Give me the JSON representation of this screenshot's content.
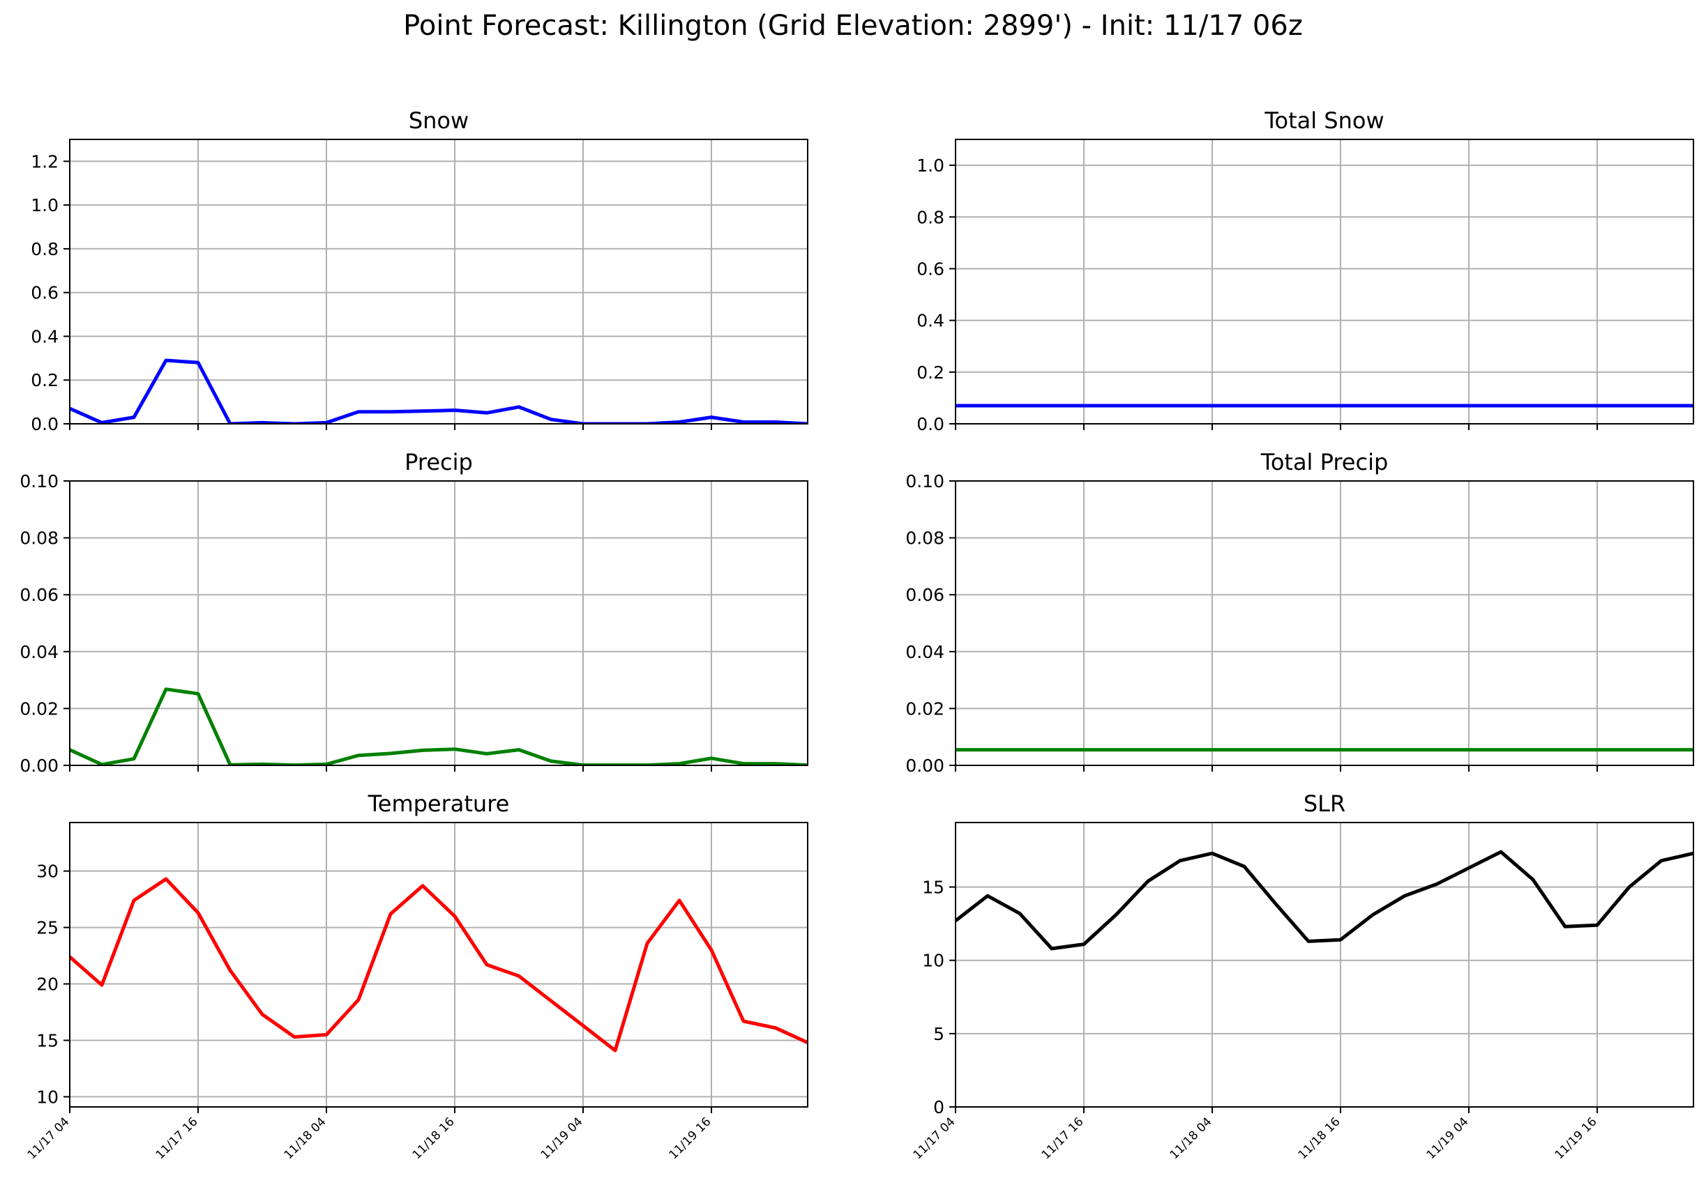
{
  "title": "Point Forecast: Killington (Grid Elevation: 2899') - Init: 11/17 06z",
  "x_tick_labels": [
    "11/17 04",
    "11/17 16",
    "11/18 04",
    "11/18 16",
    "11/19 04",
    "11/19 16"
  ],
  "chart_data": [
    {
      "type": "line",
      "title": "Snow",
      "color": "#0000ff",
      "ylim": [
        0,
        1.3
      ],
      "y_ticks": [
        0.0,
        0.2,
        0.4,
        0.6,
        0.8,
        1.0,
        1.2
      ],
      "y_tick_labels": [
        "0.0",
        "0.2",
        "0.4",
        "0.6",
        "0.8",
        "1.0",
        "1.2"
      ],
      "grid": true,
      "x": [
        "11/17 04",
        "11/17 07",
        "11/17 10",
        "11/17 13",
        "11/17 16",
        "11/17 19",
        "11/17 22",
        "11/18 01",
        "11/18 04",
        "11/18 07",
        "11/18 10",
        "11/18 13",
        "11/18 16",
        "11/18 19",
        "11/18 22",
        "11/19 01",
        "11/19 04",
        "11/19 07",
        "11/19 10",
        "11/19 13",
        "11/19 16",
        "11/19 19",
        "11/19 22",
        "11/20 01"
      ],
      "values": [
        0.07,
        0.005,
        0.03,
        0.29,
        0.28,
        0.0,
        0.005,
        0.0,
        0.005,
        0.055,
        0.055,
        0.058,
        0.062,
        0.05,
        0.077,
        0.02,
        0.0,
        0.0,
        0.0,
        0.008,
        0.03,
        0.008,
        0.008,
        0.0
      ]
    },
    {
      "type": "line",
      "title": "Total Snow",
      "color": "#0000ff",
      "ylim": [
        0,
        1.1
      ],
      "y_ticks": [
        0.0,
        0.2,
        0.4,
        0.6,
        0.8,
        1.0
      ],
      "y_tick_labels": [
        "0.0",
        "0.2",
        "0.4",
        "0.6",
        "0.8",
        "1.0"
      ],
      "grid": true,
      "x": [
        "11/17 04",
        "11/17 07",
        "11/17 10",
        "11/17 13",
        "11/17 16",
        "11/17 19",
        "11/17 22",
        "11/18 01",
        "11/18 04",
        "11/18 07",
        "11/18 10",
        "11/18 13",
        "11/18 16",
        "11/18 19",
        "11/18 22",
        "11/19 01",
        "11/19 04",
        "11/19 07",
        "11/19 10",
        "11/19 13",
        "11/19 16",
        "11/19 19",
        "11/19 22",
        "11/20 01"
      ],
      "values": [
        0.07,
        0.07,
        0.07,
        0.07,
        0.07,
        0.07,
        0.07,
        0.07,
        0.07,
        0.07,
        0.07,
        0.07,
        0.07,
        0.07,
        0.07,
        0.07,
        0.07,
        0.07,
        0.07,
        0.07,
        0.07,
        0.07,
        0.07,
        0.07
      ]
    },
    {
      "type": "line",
      "title": "Precip",
      "color": "#008000",
      "ylim": [
        0,
        0.1
      ],
      "y_ticks": [
        0.0,
        0.02,
        0.04,
        0.06,
        0.08,
        0.1
      ],
      "y_tick_labels": [
        "0.00",
        "0.02",
        "0.04",
        "0.06",
        "0.08",
        "0.10"
      ],
      "grid": true,
      "x": [
        "11/17 04",
        "11/17 07",
        "11/17 10",
        "11/17 13",
        "11/17 16",
        "11/17 19",
        "11/17 22",
        "11/18 01",
        "11/18 04",
        "11/18 07",
        "11/18 10",
        "11/18 13",
        "11/18 16",
        "11/18 19",
        "11/18 22",
        "11/19 01",
        "11/19 04",
        "11/19 07",
        "11/19 10",
        "11/19 13",
        "11/19 16",
        "11/19 19",
        "11/19 22",
        "11/20 01"
      ],
      "values": [
        0.0055,
        0.0003,
        0.0023,
        0.0268,
        0.0252,
        0.0002,
        0.0004,
        0.0001,
        0.0004,
        0.0035,
        0.0042,
        0.0053,
        0.0057,
        0.0041,
        0.0055,
        0.0015,
        0.0001,
        0.0001,
        0.0001,
        0.0006,
        0.0025,
        0.0006,
        0.0006,
        0.0001
      ]
    },
    {
      "type": "line",
      "title": "Total Precip",
      "color": "#008000",
      "ylim": [
        0,
        0.1
      ],
      "y_ticks": [
        0.0,
        0.02,
        0.04,
        0.06,
        0.08,
        0.1
      ],
      "y_tick_labels": [
        "0.00",
        "0.02",
        "0.04",
        "0.06",
        "0.08",
        "0.10"
      ],
      "grid": true,
      "x": [
        "11/17 04",
        "11/17 07",
        "11/17 10",
        "11/17 13",
        "11/17 16",
        "11/17 19",
        "11/17 22",
        "11/18 01",
        "11/18 04",
        "11/18 07",
        "11/18 10",
        "11/18 13",
        "11/18 16",
        "11/18 19",
        "11/18 22",
        "11/19 01",
        "11/19 04",
        "11/19 07",
        "11/19 10",
        "11/19 13",
        "11/19 16",
        "11/19 19",
        "11/19 22",
        "11/20 01"
      ],
      "values": [
        0.0055,
        0.0055,
        0.0055,
        0.0055,
        0.0055,
        0.0055,
        0.0055,
        0.0055,
        0.0055,
        0.0055,
        0.0055,
        0.0055,
        0.0055,
        0.0055,
        0.0055,
        0.0055,
        0.0055,
        0.0055,
        0.0055,
        0.0055,
        0.0055,
        0.0055,
        0.0055,
        0.0055
      ]
    },
    {
      "type": "line",
      "title": "Temperature",
      "color": "#ff0000",
      "ylim": [
        9.1,
        34.3
      ],
      "y_ticks": [
        10,
        15,
        20,
        25,
        30
      ],
      "y_tick_labels": [
        "10",
        "15",
        "20",
        "25",
        "30"
      ],
      "grid": true,
      "x": [
        "11/17 04",
        "11/17 07",
        "11/17 10",
        "11/17 13",
        "11/17 16",
        "11/17 19",
        "11/17 22",
        "11/18 01",
        "11/18 04",
        "11/18 07",
        "11/18 10",
        "11/18 13",
        "11/18 16",
        "11/18 19",
        "11/18 22",
        "11/19 01",
        "11/19 04",
        "11/19 07",
        "11/19 10",
        "11/19 13",
        "11/19 16",
        "11/19 19",
        "11/19 22",
        "11/20 01"
      ],
      "values": [
        22.4,
        19.9,
        27.4,
        29.3,
        26.3,
        21.2,
        17.3,
        15.3,
        15.5,
        18.6,
        26.2,
        28.7,
        26.0,
        21.7,
        20.7,
        18.5,
        16.3,
        14.1,
        23.6,
        27.4,
        23.0,
        16.7,
        16.1,
        14.8
      ]
    },
    {
      "type": "line",
      "title": "SLR",
      "color": "#000000",
      "ylim": [
        0,
        19.4
      ],
      "y_ticks": [
        0,
        5,
        10,
        15
      ],
      "y_tick_labels": [
        "0",
        "5",
        "10",
        "15"
      ],
      "grid": true,
      "x": [
        "11/17 04",
        "11/17 07",
        "11/17 10",
        "11/17 13",
        "11/17 16",
        "11/17 19",
        "11/17 22",
        "11/18 01",
        "11/18 04",
        "11/18 07",
        "11/18 10",
        "11/18 13",
        "11/18 16",
        "11/18 19",
        "11/18 22",
        "11/19 01",
        "11/19 04",
        "11/19 07",
        "11/19 10",
        "11/19 13",
        "11/19 16",
        "11/19 19",
        "11/19 22",
        "11/20 01"
      ],
      "values": [
        12.7,
        14.4,
        13.2,
        10.8,
        11.1,
        13.1,
        15.4,
        16.8,
        17.3,
        16.4,
        13.8,
        11.3,
        11.4,
        13.1,
        14.4,
        15.2,
        16.3,
        17.4,
        15.5,
        12.3,
        12.4,
        15.0,
        16.8,
        17.3
      ]
    }
  ]
}
